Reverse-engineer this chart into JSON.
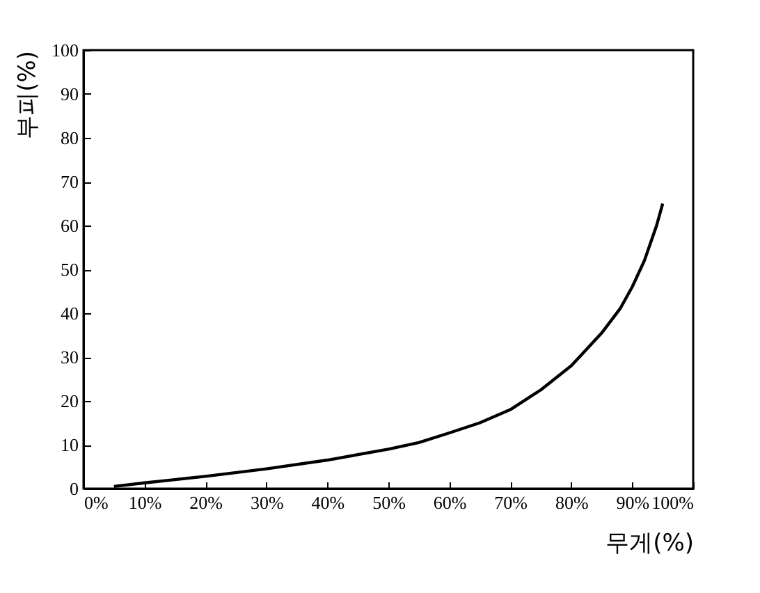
{
  "chart_data": {
    "type": "line",
    "xlabel": "무게(%)",
    "ylabel": "부피(%)",
    "x": [
      5,
      10,
      20,
      30,
      40,
      50,
      55,
      60,
      65,
      70,
      75,
      80,
      85,
      88,
      90,
      92,
      94,
      95
    ],
    "series": [
      {
        "color": "#000000",
        "values": [
          0.5,
          1.3,
          2.8,
          4.5,
          6.5,
          9,
          10.5,
          12.7,
          15,
          18,
          22.5,
          28,
          35.5,
          41,
          46,
          52,
          60,
          65
        ]
      }
    ],
    "xlim": [
      0,
      100
    ],
    "ylim": [
      0,
      100
    ],
    "xticks": [
      {
        "value": 0,
        "label": "0%"
      },
      {
        "value": 10,
        "label": "10%"
      },
      {
        "value": 20,
        "label": "20%"
      },
      {
        "value": 30,
        "label": "30%"
      },
      {
        "value": 40,
        "label": "40%"
      },
      {
        "value": 50,
        "label": "50%"
      },
      {
        "value": 60,
        "label": "60%"
      },
      {
        "value": 70,
        "label": "70%"
      },
      {
        "value": 80,
        "label": "80%"
      },
      {
        "value": 90,
        "label": "90%"
      },
      {
        "value": 100,
        "label": "100%"
      }
    ],
    "yticks": [
      0,
      10,
      20,
      30,
      40,
      50,
      60,
      70,
      80,
      90,
      100
    ],
    "grid": false,
    "marker": "none",
    "line_style": "solid"
  }
}
